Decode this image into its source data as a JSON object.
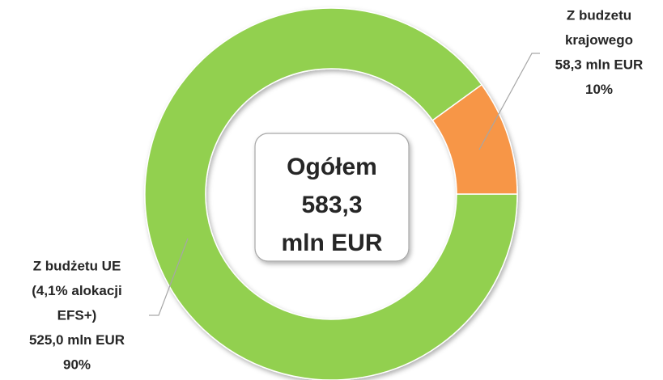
{
  "chart_data": {
    "type": "donut",
    "categories": [
      [
        "Z budżetu UE",
        "(4,1% alokacji",
        "EFS+)"
      ],
      [
        "Z budzetu",
        "krajowego"
      ]
    ],
    "values": [
      90,
      10
    ],
    "value_labels": [
      "90%",
      "10%"
    ],
    "amounts": [
      525.0,
      58.3
    ],
    "amount_labels": [
      "525,0 mln EUR",
      "58,3 mln EUR"
    ],
    "colors": [
      "#92d050",
      "#f79646"
    ],
    "center_label": [
      "Ogółem",
      "583,3",
      "mln EUR"
    ]
  }
}
